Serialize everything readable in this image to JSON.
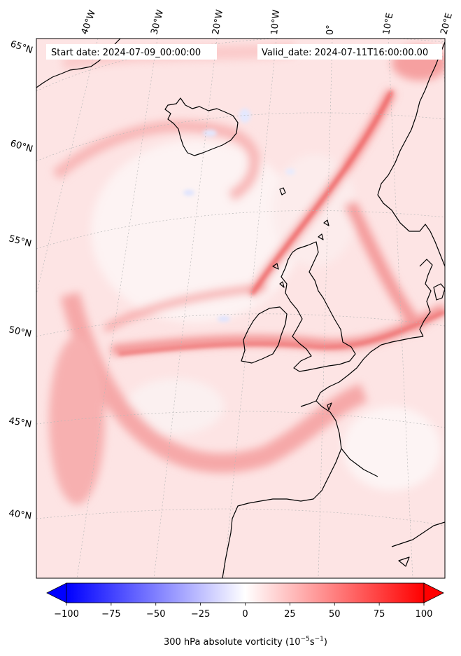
{
  "header": {
    "start_date": "Start date: 2024-07-09_00:00:00",
    "valid_date": "Valid_date: 2024-07-11T16:00:00.00"
  },
  "map": {
    "longitude_labels": [
      "40°W",
      "30°W",
      "20°W",
      "10°W",
      "0°",
      "10°E",
      "20°E"
    ],
    "latitude_labels": [
      "65°N",
      "60°N",
      "55°N",
      "50°N",
      "45°N",
      "40°N"
    ],
    "field": "300 hPa absolute vorticity",
    "region": "North Atlantic and Western Europe"
  },
  "colorbar": {
    "ticks": [
      "−100",
      "−75",
      "−50",
      "−25",
      "0",
      "25",
      "50",
      "75",
      "100"
    ],
    "label_main": "300 hPa absolute vorticity (10",
    "label_exp1": "−5",
    "label_mid": "s",
    "label_exp2": "−1",
    "label_end": ")",
    "range": [
      -100,
      100
    ],
    "extend": "both",
    "colors": {
      "low": "#0000ff",
      "mid": "#ffffff",
      "high": "#ff0000"
    }
  },
  "colors": {
    "coastline": "#000000",
    "graticule": "#b0b0b0",
    "frame": "#000000"
  }
}
